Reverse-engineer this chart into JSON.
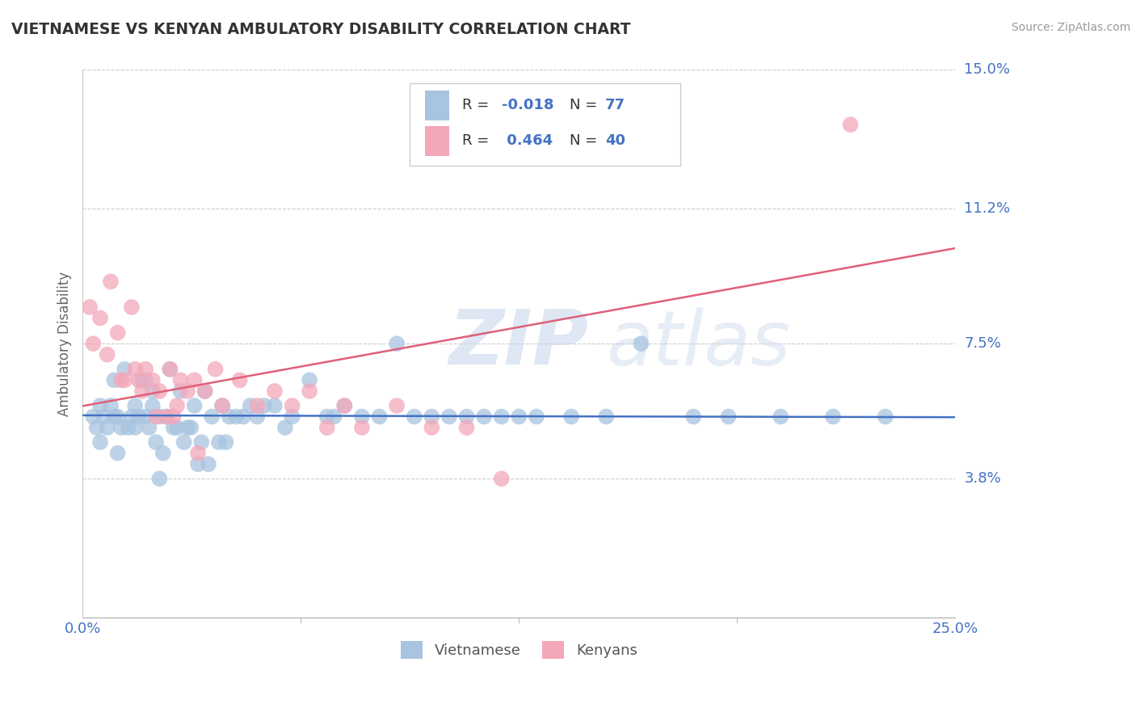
{
  "title": "VIETNAMESE VS KENYAN AMBULATORY DISABILITY CORRELATION CHART",
  "source": "Source: ZipAtlas.com",
  "ylabel": "Ambulatory Disability",
  "xlim": [
    0.0,
    25.0
  ],
  "ylim": [
    0.0,
    15.0
  ],
  "yticks": [
    0.0,
    3.8,
    7.5,
    11.2,
    15.0
  ],
  "ytick_labels": [
    "",
    "3.8%",
    "7.5%",
    "11.2%",
    "15.0%"
  ],
  "color_vietnamese": "#a8c4e0",
  "color_kenyan": "#f4a7b9",
  "color_line_vietnamese": "#4472c4",
  "color_line_kenyan": "#e0607a",
  "color_text_blue": "#4472c4",
  "background_color": "#ffffff",
  "grid_color": "#cccccc",
  "watermark_zip": "ZIP",
  "watermark_atlas": "atlas",
  "viet_x": [
    0.3,
    0.4,
    0.5,
    0.5,
    0.6,
    0.7,
    0.8,
    0.9,
    0.9,
    1.0,
    1.0,
    1.1,
    1.2,
    1.3,
    1.4,
    1.5,
    1.5,
    1.6,
    1.7,
    1.8,
    1.8,
    1.9,
    2.0,
    2.0,
    2.1,
    2.2,
    2.3,
    2.4,
    2.5,
    2.6,
    2.7,
    2.8,
    2.9,
    3.0,
    3.1,
    3.2,
    3.3,
    3.4,
    3.5,
    3.7,
    3.9,
    4.0,
    4.2,
    4.4,
    4.6,
    4.8,
    5.0,
    5.2,
    5.5,
    6.0,
    6.5,
    7.0,
    7.5,
    8.0,
    9.0,
    10.0,
    11.0,
    12.0,
    13.0,
    14.0,
    15.0,
    16.0,
    17.5,
    18.5,
    20.0,
    21.5,
    23.0,
    3.6,
    2.2,
    4.1,
    5.8,
    7.2,
    8.5,
    9.5,
    10.5,
    11.5,
    12.5
  ],
  "viet_y": [
    5.5,
    5.2,
    5.8,
    4.8,
    5.5,
    5.2,
    5.8,
    5.5,
    6.5,
    5.5,
    4.5,
    5.2,
    6.8,
    5.2,
    5.5,
    5.2,
    5.8,
    5.5,
    6.5,
    5.5,
    6.5,
    5.2,
    5.8,
    6.2,
    4.8,
    5.5,
    4.5,
    5.5,
    6.8,
    5.2,
    5.2,
    6.2,
    4.8,
    5.2,
    5.2,
    5.8,
    4.2,
    4.8,
    6.2,
    5.5,
    4.8,
    5.8,
    5.5,
    5.5,
    5.5,
    5.8,
    5.5,
    5.8,
    5.8,
    5.5,
    6.5,
    5.5,
    5.8,
    5.5,
    7.5,
    5.5,
    5.5,
    5.5,
    5.5,
    5.5,
    5.5,
    7.5,
    5.5,
    5.5,
    5.5,
    5.5,
    5.5,
    4.2,
    3.8,
    4.8,
    5.2,
    5.5,
    5.5,
    5.5,
    5.5,
    5.5,
    5.5
  ],
  "ken_x": [
    0.2,
    0.3,
    0.5,
    0.7,
    0.8,
    1.0,
    1.1,
    1.2,
    1.4,
    1.5,
    1.6,
    1.7,
    1.8,
    2.0,
    2.1,
    2.2,
    2.4,
    2.5,
    2.6,
    2.7,
    2.8,
    3.0,
    3.2,
    3.3,
    3.5,
    3.8,
    4.0,
    4.5,
    5.0,
    5.5,
    6.0,
    6.5,
    7.0,
    7.5,
    8.0,
    9.0,
    10.0,
    11.0,
    12.0,
    22.0
  ],
  "ken_y": [
    8.5,
    7.5,
    8.2,
    7.2,
    9.2,
    7.8,
    6.5,
    6.5,
    8.5,
    6.8,
    6.5,
    6.2,
    6.8,
    6.5,
    5.5,
    6.2,
    5.5,
    6.8,
    5.5,
    5.8,
    6.5,
    6.2,
    6.5,
    4.5,
    6.2,
    6.8,
    5.8,
    6.5,
    5.8,
    6.2,
    5.8,
    6.2,
    5.2,
    5.8,
    5.2,
    5.8,
    5.2,
    5.2,
    3.8,
    13.5
  ]
}
